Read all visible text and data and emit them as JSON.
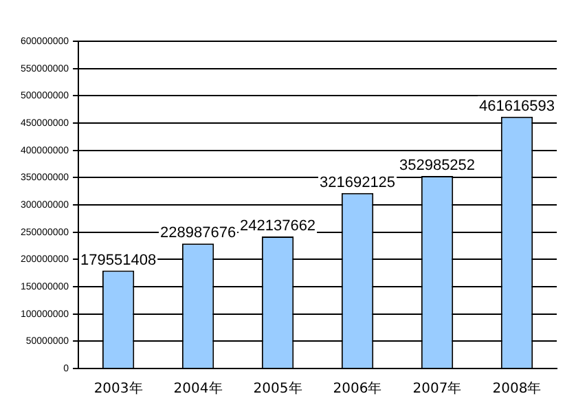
{
  "chart_data": {
    "type": "bar",
    "categories": [
      "2003年",
      "2004年",
      "2005年",
      "2006年",
      "2007年",
      "2008年"
    ],
    "values": [
      179551408,
      228987676,
      242137662,
      321692125,
      352985252,
      461616593
    ],
    "color": "#99ccff",
    "ylim": [
      0,
      600000000
    ],
    "yticks": [
      0,
      50000000,
      100000000,
      150000000,
      200000000,
      250000000,
      300000000,
      350000000,
      400000000,
      450000000,
      500000000,
      550000000,
      600000000
    ],
    "grid": "y",
    "data_labels": true,
    "legend": false
  }
}
